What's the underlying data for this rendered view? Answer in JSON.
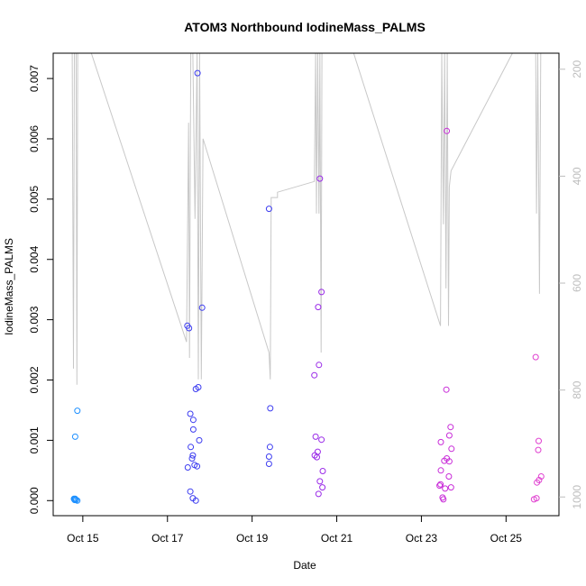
{
  "chart_data": {
    "type": "scatter",
    "title": "ATOM3 Northbound IodineMass_PALMS",
    "xlabel": "Date",
    "ylabel": "IodineMass_PALMS",
    "x_unit": "days (Oct)",
    "xlim": [
      14.3,
      26.25
    ],
    "ylim": [
      -0.00025,
      0.00742
    ],
    "x_ticks": [
      {
        "value": 15,
        "label": "Oct 15"
      },
      {
        "value": 17,
        "label": "Oct 17"
      },
      {
        "value": 19,
        "label": "Oct 19"
      },
      {
        "value": 21,
        "label": "Oct 21"
      },
      {
        "value": 23,
        "label": "Oct 23"
      },
      {
        "value": 25,
        "label": "Oct 25"
      }
    ],
    "y_ticks": [
      {
        "value": 0.0,
        "label": "0.000"
      },
      {
        "value": 0.001,
        "label": "0.001"
      },
      {
        "value": 0.002,
        "label": "0.002"
      },
      {
        "value": 0.003,
        "label": "0.003"
      },
      {
        "value": 0.004,
        "label": "0.004"
      },
      {
        "value": 0.005,
        "label": "0.005"
      },
      {
        "value": 0.006,
        "label": "0.006"
      },
      {
        "value": 0.007,
        "label": "0.007"
      }
    ],
    "right_axis": {
      "reversed": true,
      "lim": [
        170,
        1035
      ],
      "ticks": [
        {
          "value": 200,
          "label": "200"
        },
        {
          "value": 400,
          "label": "400"
        },
        {
          "value": 600,
          "label": "600"
        },
        {
          "value": 800,
          "label": "800"
        },
        {
          "value": 1000,
          "label": "1000"
        }
      ],
      "color": "#bdbdbd"
    },
    "series": [
      {
        "color": "#1E90FF",
        "points": [
          [
            14.79,
            3e-05
          ],
          [
            14.8,
            2e-05
          ],
          [
            14.81,
            1e-05
          ],
          [
            14.82,
            3e-05
          ],
          [
            14.84,
            1e-05
          ],
          [
            14.87,
            0.0
          ],
          [
            14.82,
            0.00106
          ],
          [
            14.87,
            0.00149
          ]
        ]
      },
      {
        "color": "#3C3CF0",
        "points": [
          [
            17.47,
            0.0029
          ],
          [
            17.51,
            0.00286
          ],
          [
            17.58,
            0.0007
          ],
          [
            17.61,
            0.00134
          ],
          [
            17.67,
            0.00185
          ],
          [
            17.73,
            0.00188
          ],
          [
            17.71,
            0.00709
          ],
          [
            17.82,
            0.0032
          ],
          [
            17.54,
            0.00144
          ],
          [
            17.61,
            0.00118
          ],
          [
            17.55,
            0.00089
          ],
          [
            17.6,
            0.00075
          ],
          [
            17.75,
            0.001
          ],
          [
            17.48,
            0.00055
          ],
          [
            17.64,
            0.00059
          ],
          [
            17.7,
            0.00057
          ],
          [
            17.54,
            0.00015
          ],
          [
            17.6,
            4e-05
          ],
          [
            17.67,
            0.0
          ],
          [
            19.4,
            0.00484
          ],
          [
            19.43,
            0.00153
          ],
          [
            19.42,
            0.00089
          ],
          [
            19.4,
            0.00073
          ],
          [
            19.4,
            0.00061
          ]
        ]
      },
      {
        "color": "#9A2BE8",
        "points": [
          [
            20.47,
            0.00208
          ],
          [
            20.58,
            0.00225
          ],
          [
            20.6,
            0.00534
          ],
          [
            20.64,
            0.00346
          ],
          [
            20.56,
            0.00321
          ],
          [
            20.5,
            0.00106
          ],
          [
            20.64,
            0.00101
          ],
          [
            20.55,
            0.00081
          ],
          [
            20.48,
            0.00075
          ],
          [
            20.53,
            0.00072
          ],
          [
            20.67,
            0.00049
          ],
          [
            20.6,
            0.00032
          ],
          [
            20.66,
            0.00022
          ],
          [
            20.57,
            0.00011
          ]
        ]
      },
      {
        "color": "#C82BD8",
        "points": [
          [
            23.6,
            0.00613
          ],
          [
            23.59,
            0.00184
          ],
          [
            23.69,
            0.00122
          ],
          [
            23.66,
            0.00108
          ],
          [
            23.46,
            0.00097
          ],
          [
            23.71,
            0.00086
          ],
          [
            23.6,
            0.0007
          ],
          [
            23.66,
            0.00065
          ],
          [
            23.54,
            0.00066
          ],
          [
            23.46,
            0.0005
          ],
          [
            23.65,
            0.0004
          ],
          [
            23.45,
            0.00027
          ],
          [
            23.43,
            0.00025
          ],
          [
            23.7,
            0.00022
          ],
          [
            23.56,
            0.0002
          ],
          [
            23.5,
            5e-05
          ],
          [
            23.52,
            2e-05
          ]
        ]
      },
      {
        "color": "#E040D0",
        "points": [
          [
            25.7,
            0.00238
          ],
          [
            25.77,
            0.00099
          ],
          [
            25.76,
            0.00084
          ],
          [
            25.83,
            0.0004
          ],
          [
            25.78,
            0.00034
          ],
          [
            25.73,
            0.0003
          ],
          [
            25.72,
            4e-05
          ],
          [
            25.66,
            2e-05
          ]
        ]
      }
    ],
    "altitude_trace": {
      "color": "#c8c8c8",
      "points": [
        [
          14.75,
          170
        ],
        [
          14.78,
          760
        ],
        [
          14.8,
          170
        ],
        [
          14.84,
          170
        ],
        [
          14.86,
          790
        ],
        [
          14.88,
          170
        ],
        [
          15.2,
          170
        ],
        [
          17.45,
          710
        ],
        [
          17.5,
          300
        ],
        [
          17.52,
          740
        ],
        [
          17.55,
          170
        ],
        [
          17.6,
          170
        ],
        [
          17.65,
          480
        ],
        [
          17.7,
          170
        ],
        [
          17.73,
          780
        ],
        [
          17.76,
          170
        ],
        [
          17.8,
          780
        ],
        [
          17.84,
          330
        ],
        [
          19.4,
          730
        ],
        [
          19.43,
          780
        ],
        [
          19.45,
          440
        ],
        [
          19.6,
          440
        ],
        [
          19.6,
          430
        ],
        [
          20.47,
          410
        ],
        [
          20.5,
          170
        ],
        [
          20.52,
          470
        ],
        [
          20.55,
          170
        ],
        [
          20.58,
          470
        ],
        [
          20.6,
          170
        ],
        [
          20.63,
          730
        ],
        [
          20.65,
          170
        ],
        [
          21.4,
          170
        ],
        [
          23.45,
          680
        ],
        [
          23.48,
          170
        ],
        [
          23.52,
          490
        ],
        [
          23.55,
          170
        ],
        [
          23.58,
          610
        ],
        [
          23.61,
          170
        ],
        [
          23.64,
          680
        ],
        [
          23.66,
          420
        ],
        [
          23.7,
          390
        ],
        [
          25.15,
          170
        ],
        [
          25.7,
          170
        ],
        [
          25.72,
          470
        ],
        [
          25.75,
          170
        ],
        [
          25.79,
          620
        ],
        [
          25.82,
          170
        ]
      ]
    }
  }
}
